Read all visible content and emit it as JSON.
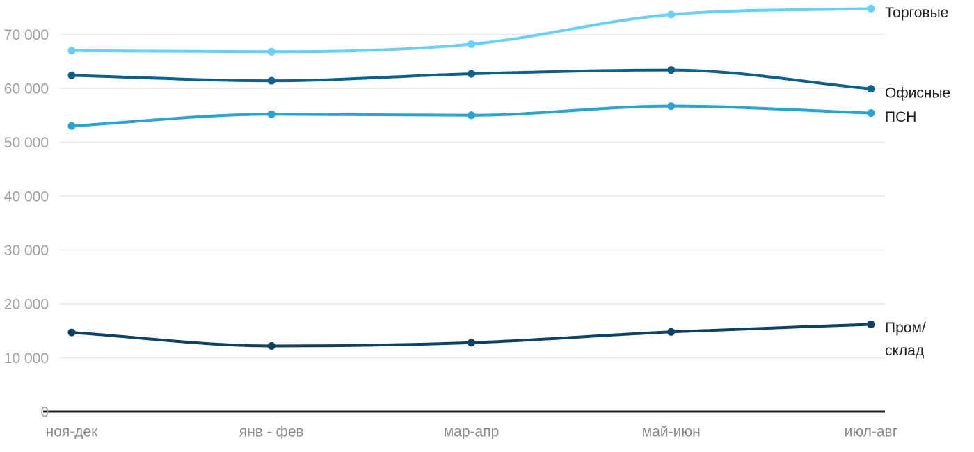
{
  "chart_data": {
    "type": "line",
    "title": "",
    "xlabel": "",
    "ylabel": "",
    "categories": [
      "ноя-дек",
      "янв - фев",
      "мар-апр",
      "май-июн",
      "июл-авг"
    ],
    "series": [
      {
        "key": "torgovye",
        "name": "Торговые",
        "color": "#67D0F7",
        "values": [
          67000,
          66800,
          68200,
          73700,
          74800
        ]
      },
      {
        "key": "ofisnye",
        "name": "Офисные",
        "color": "#0D608A",
        "values": [
          62400,
          61400,
          62700,
          63400,
          59900
        ]
      },
      {
        "key": "psn",
        "name": "ПСН",
        "color": "#29A3D2",
        "values": [
          53000,
          55200,
          55000,
          56700,
          55400
        ]
      },
      {
        "key": "prom-sklad",
        "name": "Пром/склад",
        "label_lines": [
          "Пром/",
          "склад"
        ],
        "color": "#0E4166",
        "values": [
          14700,
          12200,
          12800,
          14800,
          16200
        ]
      }
    ],
    "y_ticks": [
      0,
      10000,
      20000,
      30000,
      40000,
      50000,
      60000,
      70000
    ],
    "y_tick_labels": [
      "0",
      "10 000",
      "20 000",
      "30 000",
      "40 000",
      "50 000",
      "60 000",
      "70 000"
    ],
    "ylim": [
      0,
      76500
    ],
    "grid": true,
    "curve": "smooth",
    "legend_position": "line-end-right",
    "style": {
      "grid_color": "#E8E8E8",
      "axis_color": "#212121",
      "y_tick_color": "#9E9E9E",
      "x_tick_color": "#8A8A8A",
      "legend_text_color": "#1F1F1F",
      "background": "#FFFFFF"
    }
  }
}
